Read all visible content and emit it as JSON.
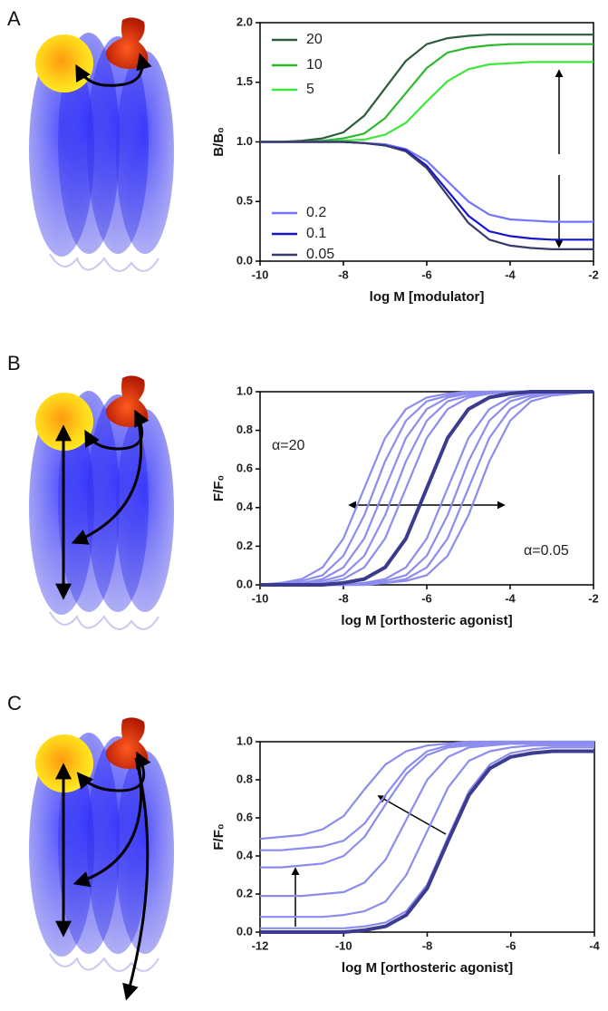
{
  "chart_data": [
    {
      "type": "line",
      "panel": "A",
      "xlabel": "log M [modulator]",
      "ylabel": "B/B₀",
      "x": [
        -10,
        -9.5,
        -9,
        -8.5,
        -8,
        -7.5,
        -7,
        -6.5,
        -6,
        -5.5,
        -5,
        -4.5,
        -4,
        -3.5,
        -3,
        -2.5,
        -2
      ],
      "xlim": [
        -10,
        -2
      ],
      "xticks": [
        -10,
        -8,
        -6,
        -4,
        -2
      ],
      "ylim": [
        0,
        2
      ],
      "yticks": [
        {
          "value": 0,
          "label": "0.0"
        },
        0.5,
        {
          "value": 1,
          "label": "1.0"
        },
        1.5,
        {
          "value": 2,
          "label": "2.0"
        }
      ],
      "series": [
        {
          "name": "20",
          "color": "#2f5c3a",
          "values": [
            1.0,
            1.0,
            1.01,
            1.03,
            1.08,
            1.22,
            1.45,
            1.68,
            1.82,
            1.87,
            1.89,
            1.9,
            1.9,
            1.9,
            1.9,
            1.9,
            1.9
          ]
        },
        {
          "name": "10",
          "color": "#2eb82e",
          "values": [
            1.0,
            1.0,
            1.0,
            1.01,
            1.03,
            1.07,
            1.2,
            1.41,
            1.62,
            1.75,
            1.79,
            1.81,
            1.82,
            1.82,
            1.82,
            1.82,
            1.82
          ]
        },
        {
          "name": "5",
          "color": "#3ee63e",
          "values": [
            1.0,
            1.0,
            1.0,
            1.0,
            1.01,
            1.02,
            1.06,
            1.16,
            1.34,
            1.51,
            1.61,
            1.65,
            1.66,
            1.67,
            1.67,
            1.67,
            1.67
          ]
        },
        {
          "name": "0.2",
          "color": "#7373ff",
          "values": [
            1.0,
            1.0,
            1.0,
            1.0,
            1.0,
            0.99,
            0.98,
            0.94,
            0.84,
            0.67,
            0.5,
            0.39,
            0.35,
            0.34,
            0.33,
            0.33,
            0.33
          ]
        },
        {
          "name": "0.1",
          "color": "#1515cc",
          "values": [
            1.0,
            1.0,
            1.0,
            1.0,
            1.0,
            0.99,
            0.97,
            0.93,
            0.8,
            0.59,
            0.38,
            0.25,
            0.21,
            0.19,
            0.18,
            0.18,
            0.18
          ]
        },
        {
          "name": "0.05",
          "color": "#3a3a6a",
          "values": [
            1.0,
            1.0,
            1.0,
            1.0,
            1.0,
            0.99,
            0.97,
            0.92,
            0.78,
            0.55,
            0.32,
            0.18,
            0.13,
            0.11,
            0.1,
            0.1,
            0.1
          ]
        }
      ]
    },
    {
      "type": "line",
      "panel": "B",
      "xlabel": "log M [orthosteric agonist]",
      "ylabel": "F/F₀",
      "annotations": [
        "α=20",
        "α=0.05"
      ],
      "x": [
        -10,
        -9.5,
        -9,
        -8.5,
        -8,
        -7.5,
        -7,
        -6.5,
        -6,
        -5.5,
        -5,
        -4.5,
        -4,
        -3.5,
        -3,
        -2.5,
        -2
      ],
      "xlim": [
        -10,
        -2
      ],
      "xticks": [
        -10,
        -8,
        -6,
        -4,
        -2
      ],
      "ylim": [
        0,
        1
      ],
      "yticks": [
        {
          "value": 0,
          "label": "0.0"
        },
        0.2,
        0.4,
        0.6,
        0.8,
        {
          "value": 1,
          "label": "1.0"
        }
      ],
      "series": [
        {
          "color": "#8c8cf0",
          "values": [
            0,
            0.01,
            0.03,
            0.09,
            0.24,
            0.5,
            0.76,
            0.91,
            0.97,
            0.99,
            1,
            1,
            1,
            1,
            1,
            1,
            1
          ]
        },
        {
          "color": "#8c8cf0",
          "values": [
            0,
            0.01,
            0.02,
            0.05,
            0.15,
            0.36,
            0.64,
            0.85,
            0.95,
            0.98,
            0.99,
            1,
            1,
            1,
            1,
            1,
            1
          ]
        },
        {
          "color": "#8c8cf0",
          "values": [
            0,
            0,
            0.01,
            0.03,
            0.09,
            0.24,
            0.5,
            0.76,
            0.91,
            0.97,
            0.99,
            1,
            1,
            1,
            1,
            1,
            1
          ]
        },
        {
          "color": "#8c8cf0",
          "values": [
            0,
            0,
            0.01,
            0.02,
            0.05,
            0.15,
            0.36,
            0.64,
            0.85,
            0.95,
            0.98,
            0.99,
            1,
            1,
            1,
            1,
            1
          ]
        },
        {
          "color": "#8c8cf0",
          "values": [
            0,
            0,
            0,
            0.01,
            0.03,
            0.09,
            0.24,
            0.5,
            0.76,
            0.91,
            0.97,
            0.99,
            1,
            1,
            1,
            1,
            1
          ]
        },
        {
          "color": "#8c8cf0",
          "values": [
            0,
            0,
            0,
            0,
            0,
            0.01,
            0.03,
            0.09,
            0.24,
            0.5,
            0.76,
            0.91,
            0.97,
            0.99,
            1,
            1,
            1
          ]
        },
        {
          "color": "#8c8cf0",
          "values": [
            0,
            0,
            0,
            0,
            0,
            0.01,
            0.02,
            0.05,
            0.15,
            0.36,
            0.64,
            0.85,
            0.95,
            0.98,
            0.99,
            1,
            1
          ]
        },
        {
          "color": "#8c8cf0",
          "values": [
            0,
            0,
            0,
            0,
            0,
            0,
            0.01,
            0.03,
            0.09,
            0.24,
            0.5,
            0.76,
            0.91,
            0.97,
            0.99,
            1,
            1
          ]
        },
        {
          "color": "#8c8cf0",
          "values": [
            0,
            0,
            0,
            0,
            0,
            0,
            0.01,
            0.02,
            0.05,
            0.15,
            0.36,
            0.64,
            0.85,
            0.95,
            0.98,
            0.99,
            1
          ]
        },
        {
          "color": "#3b3b8f",
          "values": [
            0,
            0,
            0,
            0,
            0.01,
            0.03,
            0.09,
            0.24,
            0.5,
            0.76,
            0.91,
            0.97,
            0.99,
            1,
            1,
            1,
            1
          ]
        }
      ]
    },
    {
      "type": "line",
      "panel": "C",
      "xlabel": "log M [orthosteric agonist]",
      "ylabel": "F/F₀",
      "x": [
        -12,
        -11.5,
        -11,
        -10.5,
        -10,
        -9.5,
        -9,
        -8.5,
        -8,
        -7.5,
        -7,
        -6.5,
        -6,
        -5.5,
        -5,
        -4.5,
        -4
      ],
      "xlim": [
        -12,
        -4
      ],
      "xticks": [
        -12,
        -10,
        -8,
        -6,
        -4
      ],
      "ylim": [
        0,
        1
      ],
      "yticks": [
        {
          "value": 0,
          "label": "0.0"
        },
        0.2,
        0.4,
        0.6,
        0.8,
        {
          "value": 1,
          "label": "1.0"
        }
      ],
      "series": [
        {
          "color": "#8c8cf0",
          "values": [
            0.02,
            0.02,
            0.02,
            0.02,
            0.02,
            0.03,
            0.05,
            0.11,
            0.25,
            0.5,
            0.74,
            0.88,
            0.94,
            0.96,
            0.97,
            0.97,
            0.97
          ]
        },
        {
          "color": "#8c8cf0",
          "values": [
            0.08,
            0.08,
            0.08,
            0.08,
            0.09,
            0.11,
            0.16,
            0.3,
            0.53,
            0.76,
            0.9,
            0.95,
            0.97,
            0.98,
            0.98,
            0.98,
            0.98
          ]
        },
        {
          "color": "#8c8cf0",
          "values": [
            0.19,
            0.19,
            0.19,
            0.2,
            0.21,
            0.26,
            0.38,
            0.59,
            0.8,
            0.92,
            0.97,
            0.98,
            0.99,
            0.99,
            0.99,
            0.99,
            0.99
          ]
        },
        {
          "color": "#8c8cf0",
          "values": [
            0.34,
            0.34,
            0.35,
            0.36,
            0.4,
            0.5,
            0.67,
            0.83,
            0.93,
            0.97,
            0.98,
            0.99,
            0.99,
            0.99,
            0.99,
            0.99,
            0.99
          ]
        },
        {
          "color": "#8c8cf0",
          "values": [
            0.43,
            0.43,
            0.44,
            0.45,
            0.48,
            0.57,
            0.72,
            0.86,
            0.95,
            0.98,
            0.99,
            1,
            1,
            1,
            1,
            1,
            1
          ]
        },
        {
          "color": "#8c8cf0",
          "values": [
            0.49,
            0.5,
            0.51,
            0.54,
            0.61,
            0.75,
            0.88,
            0.95,
            0.98,
            0.99,
            1,
            1,
            1,
            1,
            1,
            1,
            1
          ]
        },
        {
          "color": "#3b3b8f",
          "values": [
            0,
            0,
            0,
            0,
            0,
            0.01,
            0.03,
            0.09,
            0.23,
            0.48,
            0.72,
            0.86,
            0.92,
            0.94,
            0.95,
            0.95,
            0.95
          ]
        }
      ]
    }
  ]
}
